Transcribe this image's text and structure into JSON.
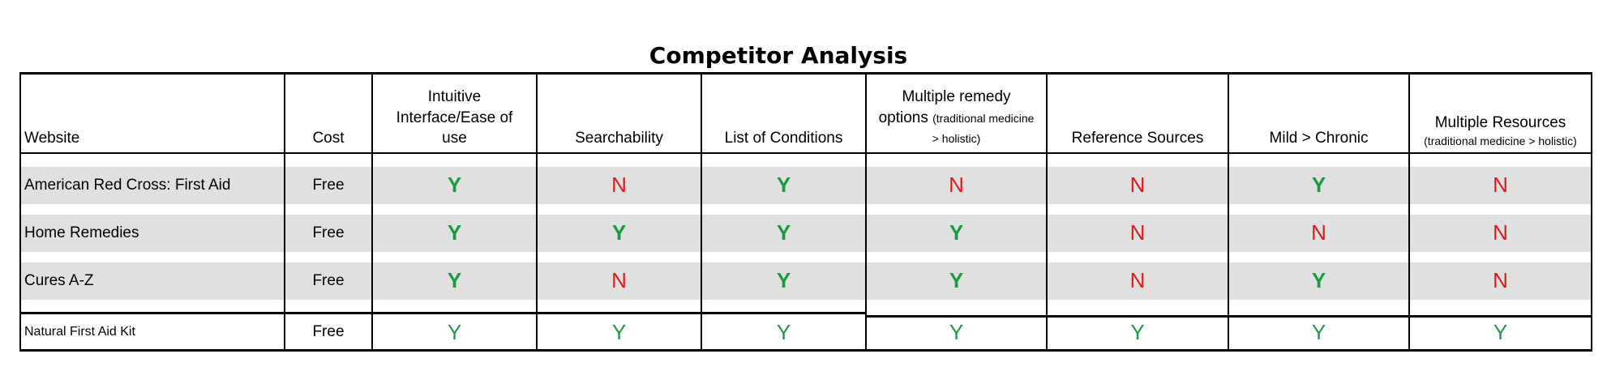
{
  "title": "Competitor Analysis",
  "headers": {
    "website": "Website",
    "cost": "Cost",
    "intuitive": "Intuitive Interface/Ease of use",
    "searchability": "Searchability",
    "conditions": "List of Conditions",
    "remedy_main": "Multiple remedy options",
    "remedy_sub": "(traditional medicine > holistic)",
    "reference": "Reference Sources",
    "mild": "Mild > Chronic",
    "resources_main": "Multiple Resources",
    "resources_sub": "(traditional medicine > holistic)"
  },
  "rows": [
    {
      "website": "American Red Cross:  First Aid",
      "cost": "Free",
      "values": [
        "Y",
        "N",
        "Y",
        "N",
        "N",
        "Y",
        "N"
      ]
    },
    {
      "website": "Home Remedies",
      "cost": "Free",
      "values": [
        "Y",
        "Y",
        "Y",
        "Y",
        "N",
        "N",
        "N"
      ]
    },
    {
      "website": "Cures A-Z",
      "cost": "Free",
      "values": [
        "Y",
        "N",
        "Y",
        "Y",
        "N",
        "Y",
        "N"
      ]
    },
    {
      "website": "Natural First Aid Kit",
      "cost": "Free",
      "values": [
        "Y",
        "Y",
        "Y",
        "Y",
        "Y",
        "Y",
        "Y"
      ]
    }
  ],
  "colors": {
    "yes": "#1a9c3e",
    "no": "#e01a1a",
    "stripe": "#e0e0e0"
  }
}
